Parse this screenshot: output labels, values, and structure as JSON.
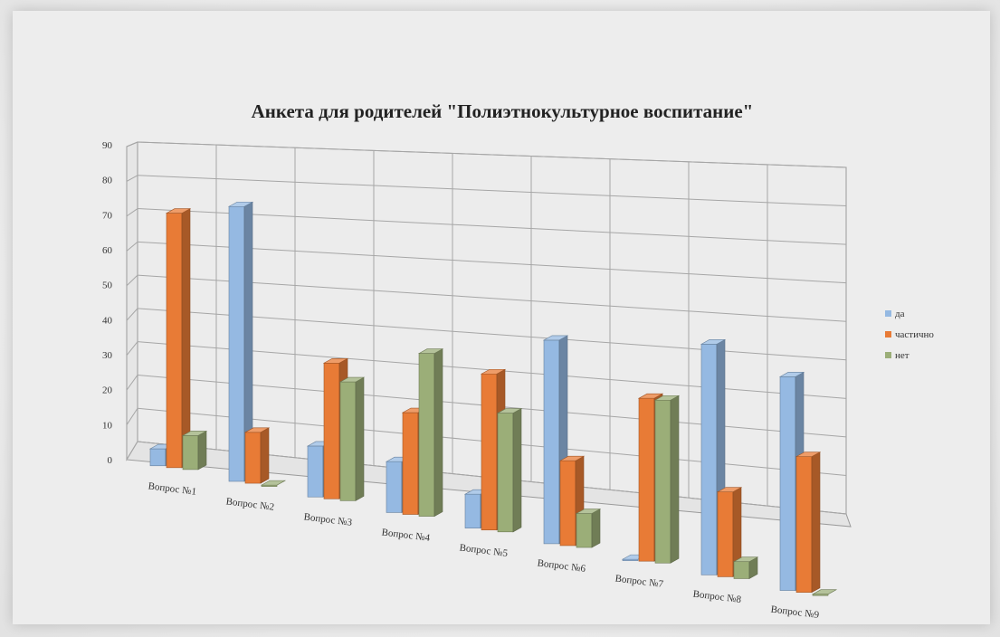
{
  "chart_data": {
    "type": "bar",
    "subtype": "3d-clustered-column",
    "title": "Анкета для родителей \"Полиэтнокультурное воспитание\"",
    "categories": [
      "Вопрос №1",
      "Вопрос №2",
      "Вопрос №3",
      "Вопрос №4",
      "Вопрос №5",
      "Вопрос №6",
      "Вопрос №7",
      "Вопрос №8",
      "Вопрос №9"
    ],
    "series": [
      {
        "name": "да",
        "color": "#95b9e2",
        "values": [
          5,
          81,
          15,
          15,
          10,
          60,
          0,
          68,
          63
        ]
      },
      {
        "name": "частично",
        "color": "#e87b36",
        "values": [
          75,
          15,
          40,
          30,
          46,
          25,
          48,
          25,
          40
        ]
      },
      {
        "name": "нет",
        "color": "#9bae78",
        "values": [
          10,
          0,
          35,
          48,
          35,
          10,
          48,
          5,
          0
        ]
      }
    ],
    "yticks": [
      "0",
      "10",
      "20",
      "30",
      "40",
      "50",
      "60",
      "70",
      "80",
      "90"
    ],
    "ylim": [
      0,
      90
    ],
    "grid": true,
    "legend_position": "right"
  }
}
